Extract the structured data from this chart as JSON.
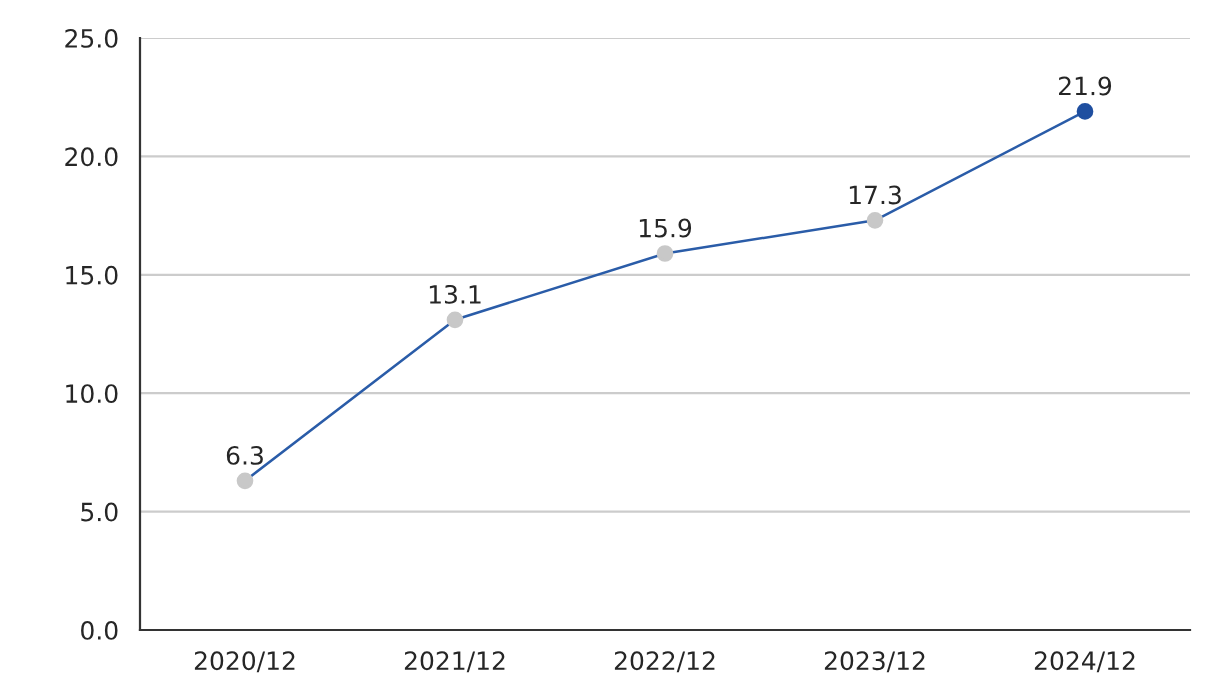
{
  "chart_data": {
    "type": "line",
    "categories": [
      "2020/12",
      "2021/12",
      "2022/12",
      "2023/12",
      "2024/12"
    ],
    "series": [
      {
        "color": "#2a5ca8",
        "colors": [
          "#c8c8c8",
          "#c8c8c8",
          "#c8c8c8",
          "#c8c8c8",
          "#1f4fa0"
        ],
        "values": [
          6.3,
          13.1,
          15.9,
          17.3,
          21.9
        ]
      }
    ],
    "ylim": [
      0,
      25
    ],
    "yticks": [
      {
        "value": 0,
        "label": "0.0"
      },
      {
        "value": 5,
        "label": "5.0"
      },
      {
        "value": 10,
        "label": "10.0"
      },
      {
        "value": 15,
        "label": "15.0"
      },
      {
        "value": 20,
        "label": "20.0"
      },
      {
        "value": 25,
        "label": "25.0"
      }
    ],
    "grid": "y",
    "marker": "circle",
    "line_style": "solid",
    "data_labels": true
  }
}
